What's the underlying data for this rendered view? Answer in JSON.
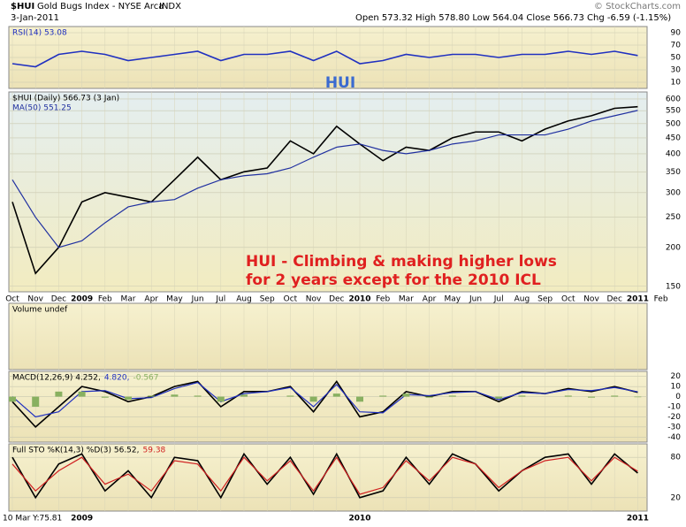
{
  "header": {
    "symbol": "$HUI",
    "name": "Gold Bugs Index - NYSE Arca",
    "exchange": "INDX",
    "date": "3-Jan-2011",
    "quote": "Open 573.32 High 578.80 Low 564.04 Close 566.73 Chg -6.59 (-1.15%)",
    "source": "© StockCharts.com",
    "cursor": "10 Mar Y:75.81"
  },
  "chart_data": [
    {
      "type": "line",
      "annotation": "HUI",
      "ylim": [
        0,
        100
      ],
      "yticks": [
        10,
        30,
        50,
        70,
        90
      ],
      "grid": true,
      "series": [
        {
          "name": "RSI(14) 53.08",
          "color": "#2030c0",
          "values": [
            40,
            35,
            55,
            60,
            55,
            45,
            50,
            55,
            60,
            45,
            55,
            55,
            60,
            45,
            60,
            40,
            45,
            55,
            50,
            55,
            55,
            50,
            55,
            55,
            60,
            55,
            60,
            53.08,
            null
          ]
        }
      ]
    },
    {
      "type": "line",
      "log": true,
      "ylim": [
        144,
        632
      ],
      "yticks": [
        150,
        200,
        250,
        300,
        350,
        400,
        450,
        500,
        550,
        600
      ],
      "grid": true,
      "categories": [
        "Oct",
        "Nov",
        "Dec",
        "2009",
        "Feb",
        "Mar",
        "Apr",
        "May",
        "Jun",
        "Jul",
        "Aug",
        "Sep",
        "Oct",
        "Nov",
        "Dec",
        "2010",
        "Feb",
        "Mar",
        "Apr",
        "May",
        "Jun",
        "Jul",
        "Aug",
        "Sep",
        "Oct",
        "Nov",
        "Dec",
        "2011",
        "Feb"
      ],
      "annotations": [
        "HUI - Climbing & making higher lows",
        "for 2 years except for the 2010 ICL"
      ],
      "series": [
        {
          "name": "$HUI (Daily) 566.73 (3 Jan)",
          "color": "#000000",
          "values": [
            280,
            165,
            200,
            280,
            300,
            290,
            280,
            330,
            390,
            330,
            350,
            360,
            440,
            400,
            490,
            430,
            380,
            420,
            410,
            450,
            470,
            470,
            440,
            480,
            510,
            530,
            560,
            566.73,
            null
          ]
        },
        {
          "name": "MA(50) 551.25",
          "color": "#2030a0",
          "values": [
            330,
            250,
            200,
            210,
            240,
            270,
            280,
            285,
            310,
            330,
            340,
            345,
            360,
            390,
            420,
            430,
            410,
            400,
            410,
            430,
            440,
            460,
            460,
            460,
            480,
            510,
            530,
            551.25,
            null
          ]
        }
      ]
    },
    {
      "type": "bar",
      "title": "Volume undef"
    },
    {
      "type": "line",
      "ylim": [
        -45,
        25
      ],
      "yticks": [
        -40,
        -30,
        -20,
        -10,
        0,
        10,
        20
      ],
      "grid": true,
      "series": [
        {
          "name": "MACD(12,26,9) 4.252,",
          "color": "#000000",
          "values": [
            -5,
            -30,
            -10,
            10,
            5,
            -5,
            0,
            10,
            15,
            -10,
            5,
            5,
            10,
            -15,
            15,
            -20,
            -15,
            5,
            0,
            5,
            5,
            -5,
            5,
            3,
            8,
            5,
            10,
            4.252,
            null
          ]
        },
        {
          "name": "4.820,",
          "color": "#2030c0",
          "values": [
            0,
            -20,
            -15,
            5,
            6,
            -2,
            -1,
            8,
            14,
            -5,
            3,
            5,
            9,
            -10,
            12,
            -15,
            -16,
            2,
            1,
            4,
            5,
            -3,
            4,
            3,
            7,
            6,
            9,
            4.82,
            null
          ]
        },
        {
          "name": "-0.567",
          "color": "#88b060",
          "type": "bar",
          "values": [
            -5,
            -10,
            5,
            5,
            -1,
            -3,
            1,
            2,
            1,
            -5,
            2,
            0,
            1,
            -5,
            3,
            -5,
            1,
            3,
            -1,
            1,
            0,
            -2,
            1,
            0,
            1,
            -1,
            1,
            -0.567,
            null
          ]
        }
      ]
    },
    {
      "type": "line",
      "ylim": [
        0,
        100
      ],
      "yticks": [
        20,
        80
      ],
      "grid": true,
      "categories": [
        null,
        null,
        null,
        "2009",
        null,
        null,
        null,
        null,
        null,
        null,
        null,
        null,
        null,
        null,
        null,
        "2010",
        null,
        null,
        null,
        null,
        null,
        null,
        null,
        null,
        null,
        null,
        null,
        "2011",
        null
      ],
      "series": [
        {
          "name": "Full STO %K(14,3) %D(3) 56.52,",
          "color": "#000000",
          "values": [
            80,
            20,
            70,
            85,
            30,
            60,
            20,
            80,
            75,
            20,
            85,
            40,
            80,
            25,
            85,
            20,
            30,
            80,
            40,
            85,
            70,
            30,
            60,
            80,
            85,
            40,
            85,
            56.52,
            null
          ]
        },
        {
          "name": "59.38",
          "color": "#d02020",
          "values": [
            70,
            30,
            60,
            80,
            40,
            55,
            30,
            75,
            70,
            30,
            80,
            45,
            75,
            30,
            80,
            25,
            35,
            75,
            45,
            80,
            70,
            35,
            60,
            75,
            80,
            45,
            80,
            59.38,
            null
          ]
        }
      ]
    }
  ]
}
